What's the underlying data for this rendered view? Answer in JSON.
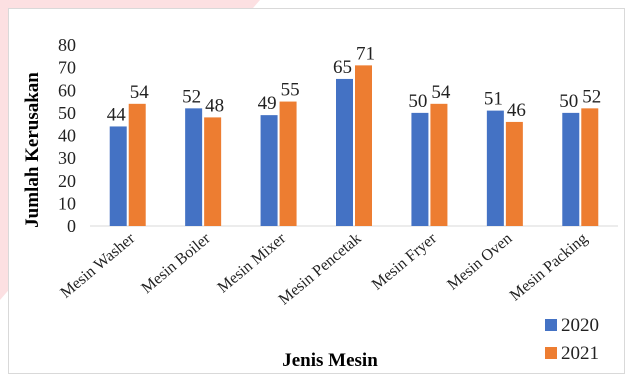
{
  "chart_data": {
    "type": "bar",
    "title": "",
    "xlabel": "Jenis Mesin",
    "ylabel": "Jumlah Kerusakan",
    "categories": [
      "Mesin Washer",
      "Mesin Boiler",
      "Mesin Mixer",
      "Mesin Pencetak",
      "Mesin Fryer",
      "Mesin Oven",
      "Mesin Packing"
    ],
    "series": [
      {
        "name": "2020",
        "color": "#4472c4",
        "values": [
          44,
          52,
          49,
          65,
          50,
          51,
          50
        ]
      },
      {
        "name": "2021",
        "color": "#ed7d31",
        "values": [
          54,
          48,
          55,
          71,
          54,
          46,
          52
        ]
      }
    ],
    "ylim": [
      0,
      80
    ],
    "yticks": [
      0,
      10,
      20,
      30,
      40,
      50,
      60,
      70,
      80
    ],
    "grid": false,
    "legend": "bottom-right"
  },
  "background": {
    "accent": "#f7b7bb"
  }
}
